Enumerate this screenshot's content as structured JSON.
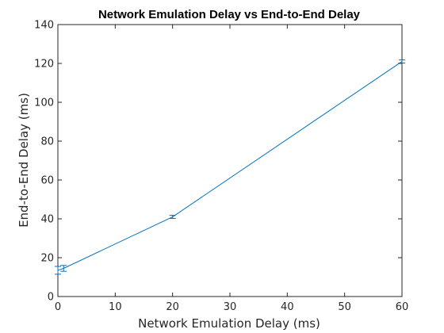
{
  "chart_data": {
    "type": "line",
    "title": "Network Emulation Delay vs End-to-End Delay",
    "xlabel": "Network Emulation Delay (ms)",
    "ylabel": "End-to-End Delay (ms)",
    "xlim": [
      0,
      60
    ],
    "ylim": [
      0,
      140
    ],
    "xticks": [
      0,
      10,
      20,
      30,
      40,
      50,
      60
    ],
    "yticks": [
      0,
      20,
      40,
      60,
      80,
      100,
      120,
      140
    ],
    "grid": false,
    "box": true,
    "series": [
      {
        "x": [
          0,
          1,
          20,
          60
        ],
        "y": [
          13.5,
          14.5,
          41,
          121
        ],
        "error": [
          2,
          1.5,
          0.8,
          0.8
        ],
        "color": "#0072BD"
      }
    ]
  }
}
